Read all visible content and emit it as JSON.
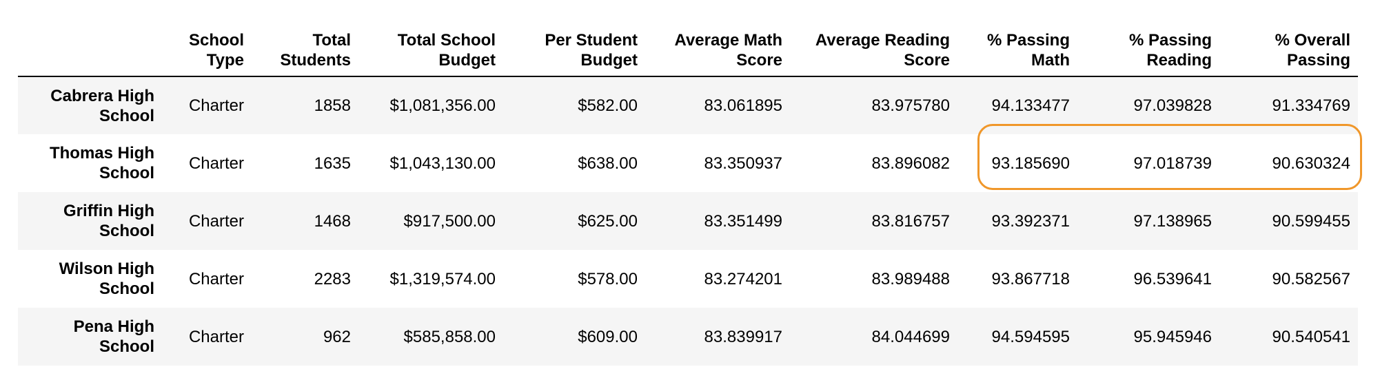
{
  "table": {
    "columns": [
      "",
      "School Type",
      "Total Students",
      "Total School Budget",
      "Per Student Budget",
      "Average Math Score",
      "Average Reading Score",
      "% Passing Math",
      "% Passing Reading",
      "% Overall Passing"
    ],
    "rows": [
      {
        "school": "Cabrera High School",
        "type": "Charter",
        "students": "1858",
        "budget": "$1,081,356.00",
        "per_student": "$582.00",
        "avg_math": "83.061895",
        "avg_reading": "83.975780",
        "pct_math": "94.133477",
        "pct_reading": "97.039828",
        "pct_overall": "91.334769"
      },
      {
        "school": "Thomas High School",
        "type": "Charter",
        "students": "1635",
        "budget": "$1,043,130.00",
        "per_student": "$638.00",
        "avg_math": "83.350937",
        "avg_reading": "83.896082",
        "pct_math": "93.185690",
        "pct_reading": "97.018739",
        "pct_overall": "90.630324"
      },
      {
        "school": "Griffin High School",
        "type": "Charter",
        "students": "1468",
        "budget": "$917,500.00",
        "per_student": "$625.00",
        "avg_math": "83.351499",
        "avg_reading": "83.816757",
        "pct_math": "93.392371",
        "pct_reading": "97.138965",
        "pct_overall": "90.599455"
      },
      {
        "school": "Wilson High School",
        "type": "Charter",
        "students": "2283",
        "budget": "$1,319,574.00",
        "per_student": "$578.00",
        "avg_math": "83.274201",
        "avg_reading": "83.989488",
        "pct_math": "93.867718",
        "pct_reading": "96.539641",
        "pct_overall": "90.582567"
      },
      {
        "school": "Pena High School",
        "type": "Charter",
        "students": "962",
        "budget": "$585,858.00",
        "per_student": "$609.00",
        "avg_math": "83.839917",
        "avg_reading": "84.044699",
        "pct_math": "94.594595",
        "pct_reading": "95.945946",
        "pct_overall": "90.540541"
      }
    ]
  },
  "highlight": {
    "color": "#f0972a"
  }
}
